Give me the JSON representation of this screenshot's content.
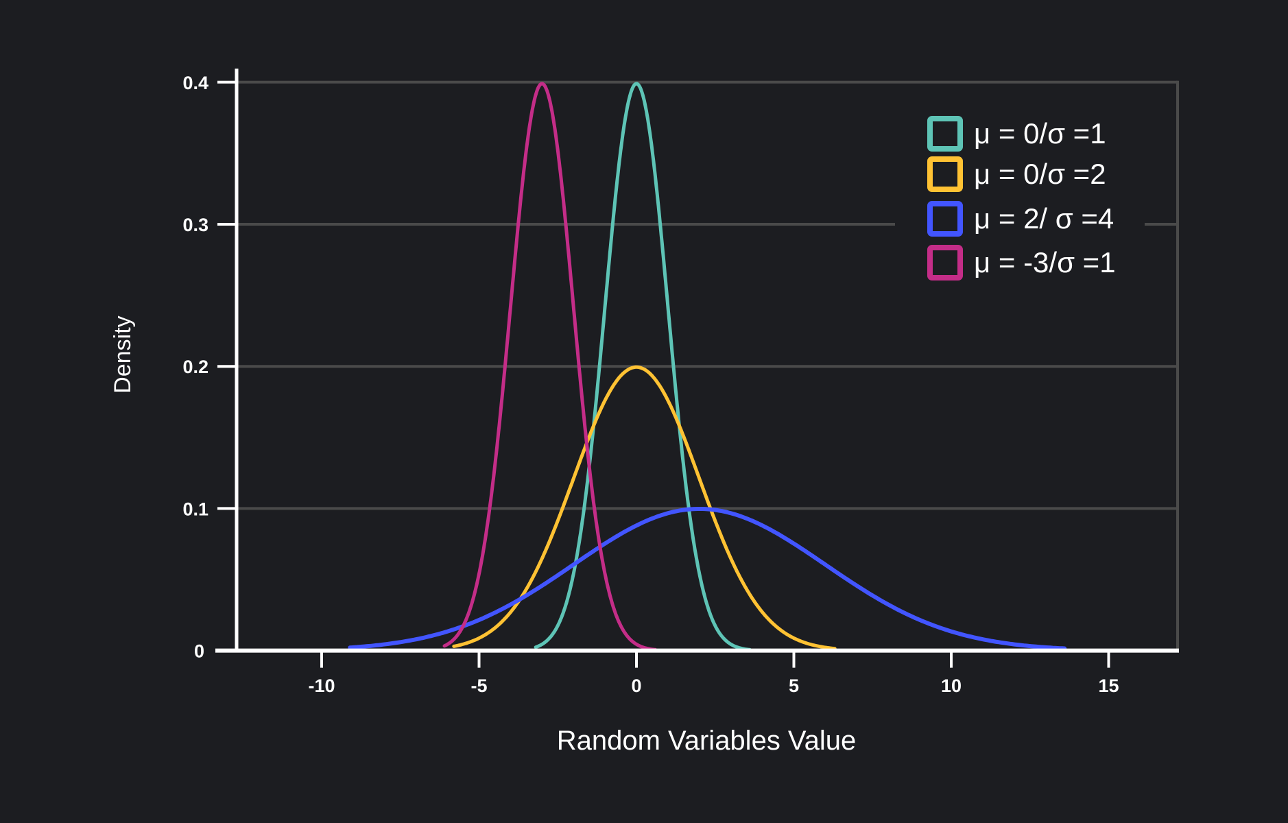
{
  "chart_data": {
    "type": "line",
    "xlabel": "Random Variables Value",
    "ylabel": "Density",
    "xlim": [
      -12.5,
      17
    ],
    "ylim": [
      0,
      0.4
    ],
    "x_ticks": [
      -10,
      -5,
      0,
      5,
      10,
      15
    ],
    "x_tick_labels": [
      "-10",
      "-5",
      "0",
      "5",
      "10",
      "15"
    ],
    "y_ticks": [
      0,
      0.1,
      0.2,
      0.3,
      0.4
    ],
    "y_tick_labels": [
      "0",
      "0.1",
      "0.2",
      "0.3",
      "0.4"
    ],
    "grid": "horizontal",
    "legend_position": "top-right",
    "series": [
      {
        "name": "μ = 0/σ =1",
        "mu": 0,
        "sigma": 1,
        "x_range": [
          -3.2,
          3.6
        ],
        "color": "#5ec4b6"
      },
      {
        "name": "μ = 0/σ =2",
        "mu": 0,
        "sigma": 2,
        "x_range": [
          -5.8,
          6.3
        ],
        "color": "#ffc233"
      },
      {
        "name": "μ = 2/ σ =4",
        "mu": 2,
        "sigma": 4,
        "x_range": [
          -9.1,
          13.6
        ],
        "color": "#4255ff"
      },
      {
        "name": "μ = -3/σ =1",
        "mu": -3,
        "sigma": 1,
        "x_range": [
          -6.1,
          0.6
        ],
        "color": "#c42d88"
      }
    ]
  },
  "colors": {
    "background": "#1c1d21",
    "grid": "#4a4a4a",
    "axis": "#ffffff",
    "text": "#ffffff"
  }
}
